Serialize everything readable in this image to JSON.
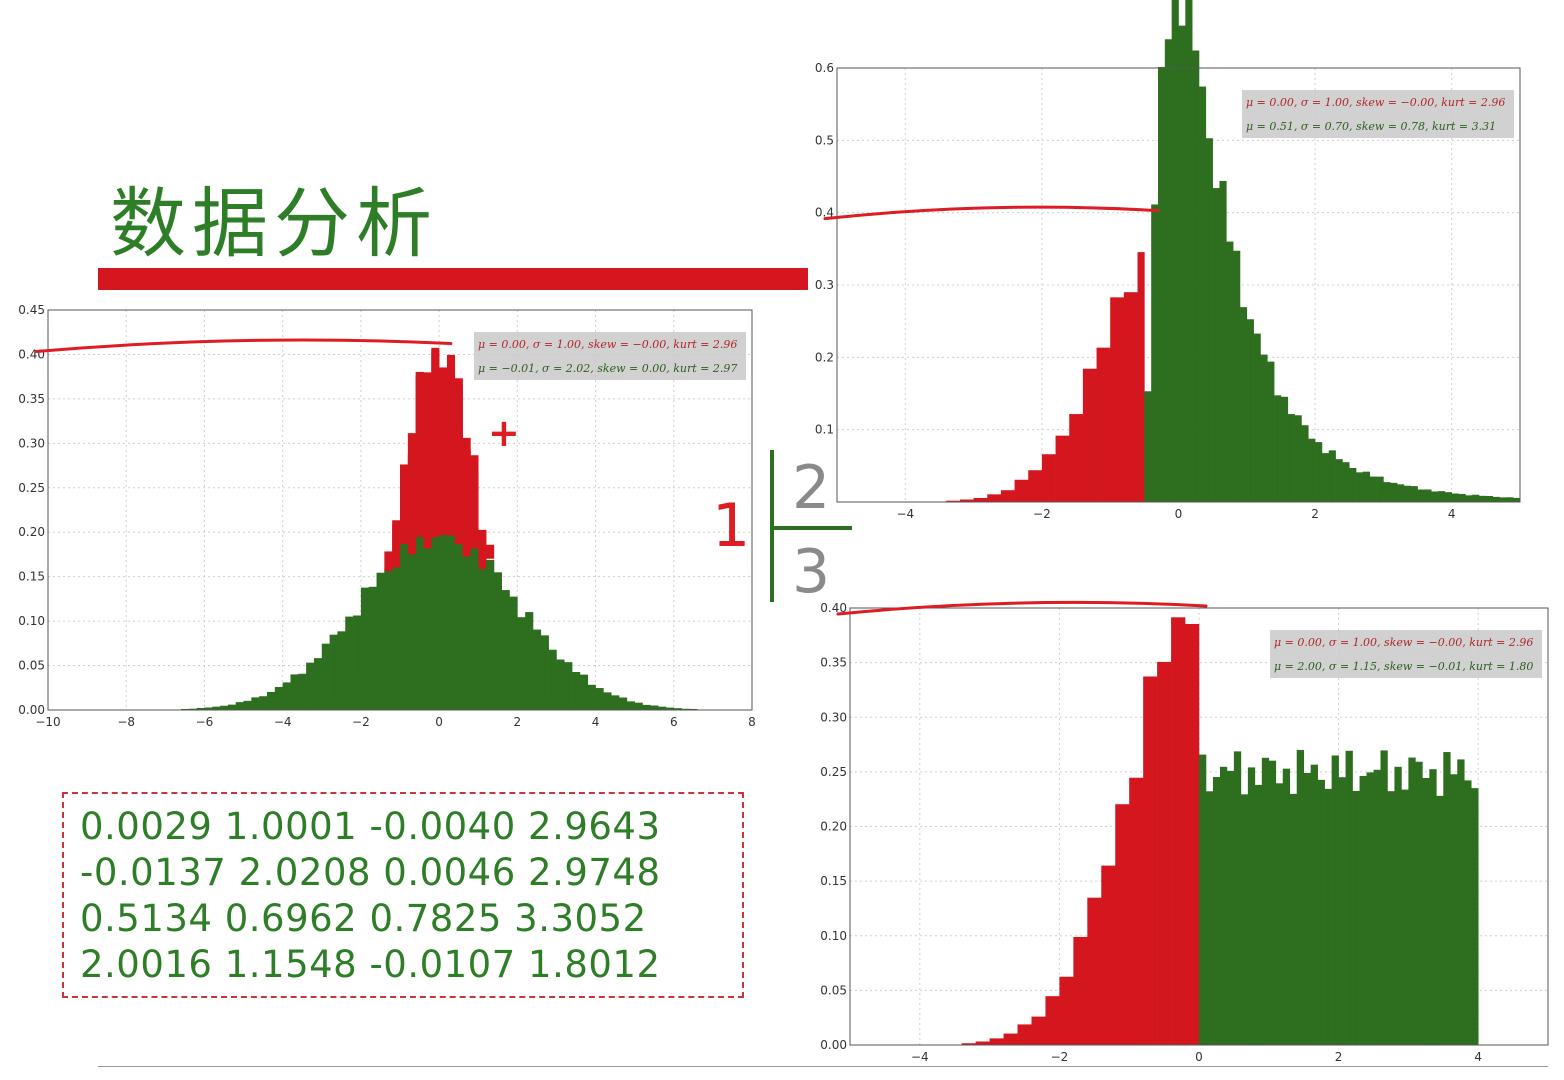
{
  "title": "数据分析",
  "colors": {
    "red": "#d4161e",
    "green": "#2e6e1f",
    "title_green": "#2e7d27",
    "annotation_red": "#dd1c24",
    "gray": "#8a8a8a"
  },
  "markers": {
    "one": "1",
    "two": "2",
    "three": "3",
    "plus": "+"
  },
  "stats_rows": [
    "0.0029 1.0001 -0.0040 2.9643",
    "-0.0137 2.0208 0.0046 2.9748",
    "0.5134 0.6962 0.7825 3.3052",
    "2.0016 1.1548 -0.0107 1.8012"
  ],
  "chart_data": [
    {
      "type": "bar",
      "xlim": [
        -10,
        8
      ],
      "ylim": [
        0,
        0.45
      ],
      "xticks": [
        "−10",
        "−8",
        "−6",
        "−4",
        "−2",
        "0",
        "2",
        "4",
        "6",
        "8"
      ],
      "yticks": [
        "0.00",
        "0.05",
        "0.10",
        "0.15",
        "0.20",
        "0.25",
        "0.30",
        "0.35",
        "0.40",
        "0.45"
      ],
      "grid": true,
      "legend_position": "top-right",
      "legend": [
        "μ = 0.00, σ = 1.00, skew = −0.00, kurt = 2.96",
        "μ = −0.01, σ = 2.02, skew = 0.00, kurt = 2.97"
      ],
      "series": [
        {
          "color": "red",
          "distribution": "normal",
          "mean": 0.0,
          "std": 1.0,
          "bin_width": 0.2
        },
        {
          "color": "green",
          "distribution": "normal",
          "mean": -0.01,
          "std": 2.02,
          "bin_width": 0.2
        }
      ],
      "annotation_line_y": 0.41
    },
    {
      "type": "bar",
      "xlim": [
        -5,
        5
      ],
      "ylim": [
        0,
        0.6
      ],
      "xticks": [
        "−4",
        "−2",
        "0",
        "2",
        "4"
      ],
      "yticks": [
        "",
        "0.1",
        "0.2",
        "0.3",
        "0.4",
        "0.5",
        "0.6"
      ],
      "grid": true,
      "legend_position": "top-right",
      "legend": [
        "μ = 0.00, σ = 1.00, skew = −0.00, kurt = 2.96",
        "μ = 0.51, σ = 0.70, skew = 0.78, kurt = 3.31"
      ],
      "series": [
        {
          "color": "red",
          "distribution": "normal",
          "mean": 0.0,
          "std": 1.0,
          "bin_width": 0.2,
          "x_max": -0.5
        },
        {
          "color": "green",
          "distribution": "lognormal-shifted",
          "mean": 0.51,
          "std": 0.7,
          "bin_width": 0.1,
          "x_min": -0.5
        }
      ],
      "annotation_line_y": 0.4
    },
    {
      "type": "bar",
      "xlim": [
        -5,
        5
      ],
      "ylim": [
        0,
        0.4
      ],
      "xticks": [
        "−4",
        "−2",
        "0",
        "2",
        "4"
      ],
      "yticks": [
        "0.00",
        "0.05",
        "0.10",
        "0.15",
        "0.20",
        "0.25",
        "0.30",
        "0.35",
        "0.40"
      ],
      "grid": true,
      "legend_position": "top-right",
      "legend": [
        "μ = 0.00, σ = 1.00, skew = −0.00, kurt = 2.96",
        "μ = 2.00, σ = 1.15, skew = −0.01, kurt = 1.80"
      ],
      "series": [
        {
          "color": "red",
          "distribution": "normal",
          "mean": 0.0,
          "std": 1.0,
          "bin_width": 0.2,
          "x_max": 0.0
        },
        {
          "color": "green",
          "distribution": "uniform",
          "mean": 2.0,
          "std": 1.15,
          "range": [
            0,
            4
          ],
          "bin_width": 0.1,
          "density": 0.25
        }
      ],
      "annotation_line_y": 0.4
    }
  ]
}
